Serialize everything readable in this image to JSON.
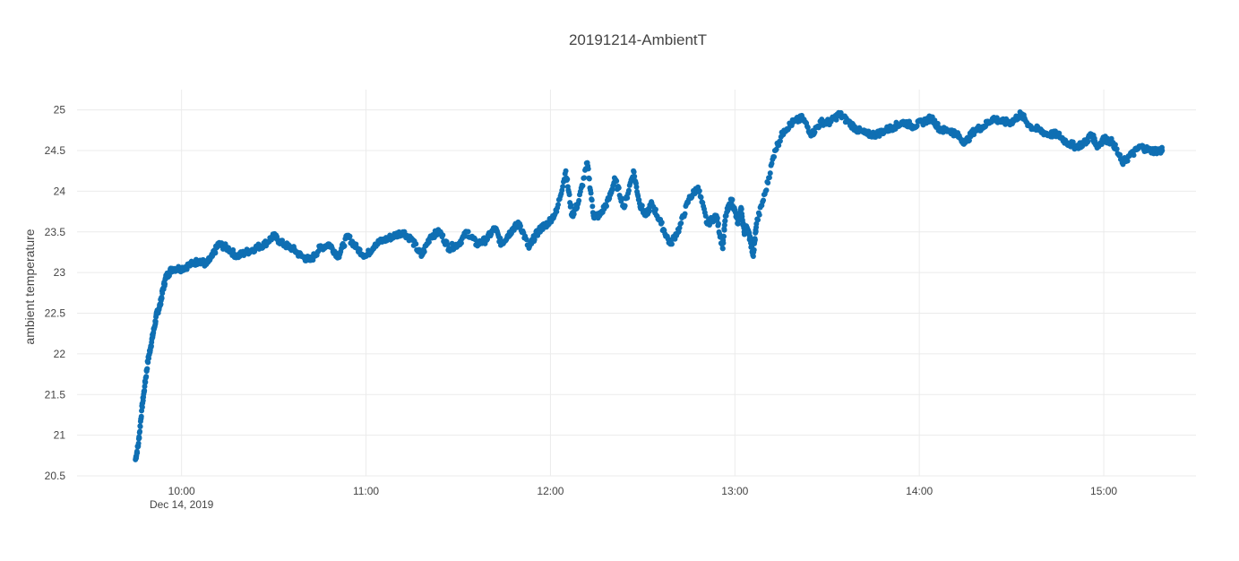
{
  "chart_data": {
    "type": "scatter",
    "title": "20191214-AmbientT",
    "xlabel": "",
    "ylabel": "ambient temperature",
    "x_range": [
      "2019-12-14 09:26",
      "2019-12-14 15:30"
    ],
    "ylim": [
      20.5,
      25.25
    ],
    "x_ticks": [
      {
        "value": "2019-12-14 10:00",
        "label": "10:00",
        "sublabel": "Dec 14, 2019"
      },
      {
        "value": "2019-12-14 11:00",
        "label": "11:00",
        "sublabel": ""
      },
      {
        "value": "2019-12-14 12:00",
        "label": "12:00",
        "sublabel": ""
      },
      {
        "value": "2019-12-14 13:00",
        "label": "13:00",
        "sublabel": ""
      },
      {
        "value": "2019-12-14 14:00",
        "label": "14:00",
        "sublabel": ""
      },
      {
        "value": "2019-12-14 15:00",
        "label": "15:00",
        "sublabel": ""
      }
    ],
    "y_ticks": [
      {
        "value": 20.5,
        "label": "20.5"
      },
      {
        "value": 21,
        "label": "21"
      },
      {
        "value": 21.5,
        "label": "21.5"
      },
      {
        "value": 22,
        "label": "22"
      },
      {
        "value": 22.5,
        "label": "22.5"
      },
      {
        "value": 23,
        "label": "23"
      },
      {
        "value": 23.5,
        "label": "23.5"
      },
      {
        "value": 24,
        "label": "24"
      },
      {
        "value": 24.5,
        "label": "24.5"
      },
      {
        "value": 25,
        "label": "25"
      }
    ],
    "grid": true,
    "legend": "none",
    "marker_color": "#0f6fb3",
    "series": [
      {
        "x": [
          "2019-12-14 09:45",
          "2019-12-14 09:46",
          "2019-12-14 09:47",
          "2019-12-14 09:48",
          "2019-12-14 09:49",
          "2019-12-14 09:50",
          "2019-12-14 09:51",
          "2019-12-14 09:52",
          "2019-12-14 09:53",
          "2019-12-14 09:54",
          "2019-12-14 09:55",
          "2019-12-14 09:57",
          "2019-12-14 10:00",
          "2019-12-14 10:03",
          "2019-12-14 10:06",
          "2019-12-14 10:08",
          "2019-12-14 10:10",
          "2019-12-14 10:12",
          "2019-12-14 10:15",
          "2019-12-14 10:18",
          "2019-12-14 10:21",
          "2019-12-14 10:24",
          "2019-12-14 10:27",
          "2019-12-14 10:30",
          "2019-12-14 10:33",
          "2019-12-14 10:36",
          "2019-12-14 10:39",
          "2019-12-14 10:42",
          "2019-12-14 10:45",
          "2019-12-14 10:48",
          "2019-12-14 10:51",
          "2019-12-14 10:54",
          "2019-12-14 10:57",
          "2019-12-14 11:00",
          "2019-12-14 11:03",
          "2019-12-14 11:06",
          "2019-12-14 11:09",
          "2019-12-14 11:12",
          "2019-12-14 11:15",
          "2019-12-14 11:18",
          "2019-12-14 11:21",
          "2019-12-14 11:24",
          "2019-12-14 11:27",
          "2019-12-14 11:30",
          "2019-12-14 11:33",
          "2019-12-14 11:36",
          "2019-12-14 11:39",
          "2019-12-14 11:42",
          "2019-12-14 11:44",
          "2019-12-14 11:46",
          "2019-12-14 11:48",
          "2019-12-14 11:50",
          "2019-12-14 11:53",
          "2019-12-14 11:55",
          "2019-12-14 11:57",
          "2019-12-14 11:59",
          "2019-12-14 12:02",
          "2019-12-14 12:05",
          "2019-12-14 12:07",
          "2019-12-14 12:09",
          "2019-12-14 12:12",
          "2019-12-14 12:14",
          "2019-12-14 12:16",
          "2019-12-14 12:19",
          "2019-12-14 12:21",
          "2019-12-14 12:24",
          "2019-12-14 12:27",
          "2019-12-14 12:29",
          "2019-12-14 12:31",
          "2019-12-14 12:33",
          "2019-12-14 12:36",
          "2019-12-14 12:39",
          "2019-12-14 12:42",
          "2019-12-14 12:45",
          "2019-12-14 12:48",
          "2019-12-14 12:51",
          "2019-12-14 12:54",
          "2019-12-14 12:56",
          "2019-12-14 12:57",
          "2019-12-14 12:59",
          "2019-12-14 13:01",
          "2019-12-14 13:02",
          "2019-12-14 13:03",
          "2019-12-14 13:04",
          "2019-12-14 13:05",
          "2019-12-14 13:06",
          "2019-12-14 13:07",
          "2019-12-14 13:10",
          "2019-12-14 13:13",
          "2019-12-14 13:16",
          "2019-12-14 13:19",
          "2019-12-14 13:22",
          "2019-12-14 13:25",
          "2019-12-14 13:28",
          "2019-12-14 13:31",
          "2019-12-14 13:34",
          "2019-12-14 13:37",
          "2019-12-14 13:40",
          "2019-12-14 13:43",
          "2019-12-14 13:46",
          "2019-12-14 13:49",
          "2019-12-14 13:52",
          "2019-12-14 13:55",
          "2019-12-14 13:58",
          "2019-12-14 14:01",
          "2019-12-14 14:04",
          "2019-12-14 14:07",
          "2019-12-14 14:10",
          "2019-12-14 14:12",
          "2019-12-14 14:15",
          "2019-12-14 14:18",
          "2019-12-14 14:21",
          "2019-12-14 14:24",
          "2019-12-14 14:27",
          "2019-12-14 14:30",
          "2019-12-14 14:33",
          "2019-12-14 14:36",
          "2019-12-14 14:39",
          "2019-12-14 14:42",
          "2019-12-14 14:45",
          "2019-12-14 14:48",
          "2019-12-14 14:51",
          "2019-12-14 14:54",
          "2019-12-14 14:56",
          "2019-12-14 14:58",
          "2019-12-14 15:00",
          "2019-12-14 15:03",
          "2019-12-14 15:06",
          "2019-12-14 15:09",
          "2019-12-14 15:12",
          "2019-12-14 15:15",
          "2019-12-14 15:18",
          "2019-12-14 15:19"
        ],
        "y": [
          20.7,
          20.9,
          21.3,
          21.6,
          21.9,
          22.1,
          22.3,
          22.5,
          22.6,
          22.8,
          22.95,
          23.05,
          23.05,
          23.1,
          23.15,
          23.1,
          23.2,
          23.35,
          23.3,
          23.2,
          23.25,
          23.3,
          23.35,
          23.45,
          23.35,
          23.3,
          23.2,
          23.15,
          23.3,
          23.35,
          23.2,
          23.45,
          23.3,
          23.2,
          23.35,
          23.4,
          23.45,
          23.5,
          23.4,
          23.2,
          23.45,
          23.5,
          23.3,
          23.35,
          23.5,
          23.35,
          23.4,
          23.55,
          23.35,
          23.45,
          23.55,
          23.6,
          23.3,
          23.45,
          23.55,
          23.6,
          23.75,
          24.25,
          23.7,
          23.85,
          24.35,
          23.7,
          23.7,
          23.9,
          24.15,
          23.8,
          24.25,
          23.85,
          23.7,
          23.85,
          23.6,
          23.35,
          23.55,
          23.9,
          24.05,
          23.6,
          23.7,
          23.3,
          23.7,
          23.9,
          23.6,
          23.8,
          23.5,
          23.55,
          23.4,
          23.2,
          23.6,
          24.0,
          24.5,
          24.75,
          24.85,
          24.9,
          24.7,
          24.85,
          24.85,
          24.95,
          24.85,
          24.75,
          24.7,
          24.7,
          24.75,
          24.8,
          24.85,
          24.8,
          24.85,
          24.9,
          24.75,
          24.75,
          24.7,
          24.6,
          24.75,
          24.8,
          24.9,
          24.85,
          24.85,
          24.95,
          24.8,
          24.75,
          24.7,
          24.7,
          24.6,
          24.55,
          24.6,
          24.7,
          24.55,
          24.65,
          24.6,
          24.35,
          24.45,
          24.55,
          24.5,
          24.5,
          24.5
        ]
      }
    ]
  }
}
